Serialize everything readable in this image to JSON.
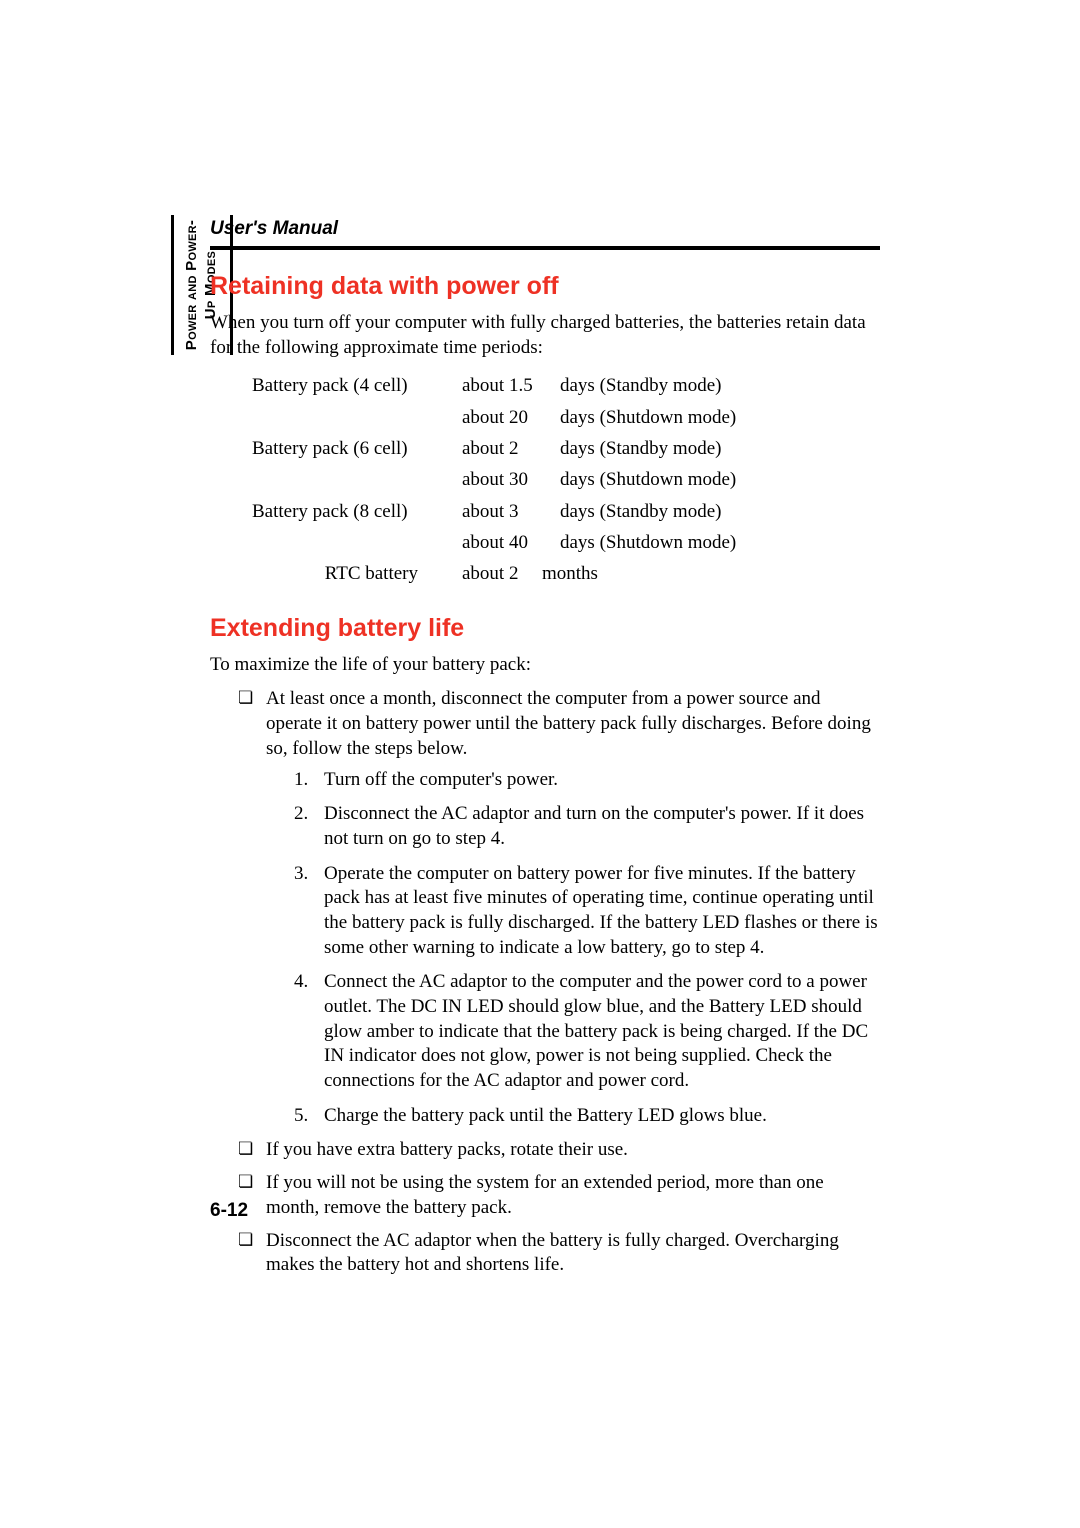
{
  "colors": {
    "heading": "#ee3124",
    "text": "#000000",
    "background": "#ffffff"
  },
  "fonts": {
    "body_family": "Times New Roman",
    "heading_family": "Arial",
    "body_size_pt": 14,
    "heading_size_pt": 19,
    "header_title_size_pt": 14
  },
  "header": {
    "title": "User's Manual"
  },
  "side_tab": {
    "line1": "Power and Power-",
    "line2": "Up Modes"
  },
  "section1": {
    "title": "Retaining data with power off",
    "intro": "When you turn off your computer with fully charged batteries, the batteries retain data for the following approximate time periods:",
    "table": {
      "rows": [
        {
          "label": "Battery pack (4 cell)",
          "duration": "about 1.5",
          "unit": "days (Standby mode)"
        },
        {
          "label": "",
          "duration": "about 20",
          "unit": "days (Shutdown mode)"
        },
        {
          "label": "Battery pack (6 cell)",
          "duration": "about 2",
          "unit": "days (Standby mode)"
        },
        {
          "label": "",
          "duration": "about 30",
          "unit": "days (Shutdown mode)"
        },
        {
          "label": "Battery pack (8 cell)",
          "duration": "about 3",
          "unit": "days (Standby mode)"
        },
        {
          "label": "",
          "duration": "about 40",
          "unit": "days (Shutdown mode)"
        }
      ],
      "rtc": {
        "label": "RTC battery",
        "duration": "about 2",
        "unit": "months"
      }
    }
  },
  "section2": {
    "title": "Extending battery life",
    "intro": "To maximize the life of your battery pack:",
    "bullets": [
      "At least once a month, disconnect the computer from a power source and operate it on battery power until the battery pack fully discharges. Before doing so, follow the steps below.",
      "If you have extra battery packs, rotate their use.",
      "If you will not be using the system for an extended period, more than one month, remove the battery pack.",
      "Disconnect the AC adaptor when the battery is fully charged. Overcharging makes the battery hot and shortens life."
    ],
    "steps": [
      "Turn off the computer's power.",
      "Disconnect the AC adaptor and turn on the computer's power. If it does not turn on go to step 4.",
      "Operate the computer on battery power for five minutes. If the battery pack has at least five minutes of operating time, continue operating until the battery pack is fully discharged. If the battery LED flashes or there is some other warning to indicate a low battery, go to step 4.",
      "Connect the AC adaptor to the computer and the power cord to a power outlet. The DC IN LED should glow blue, and the Battery LED should glow amber to indicate that the battery pack is being charged. If the DC IN indicator does not glow, power is not being supplied. Check the connections for the AC adaptor and power cord.",
      "Charge the battery pack until the Battery LED glows blue."
    ]
  },
  "page_number": "6-12"
}
